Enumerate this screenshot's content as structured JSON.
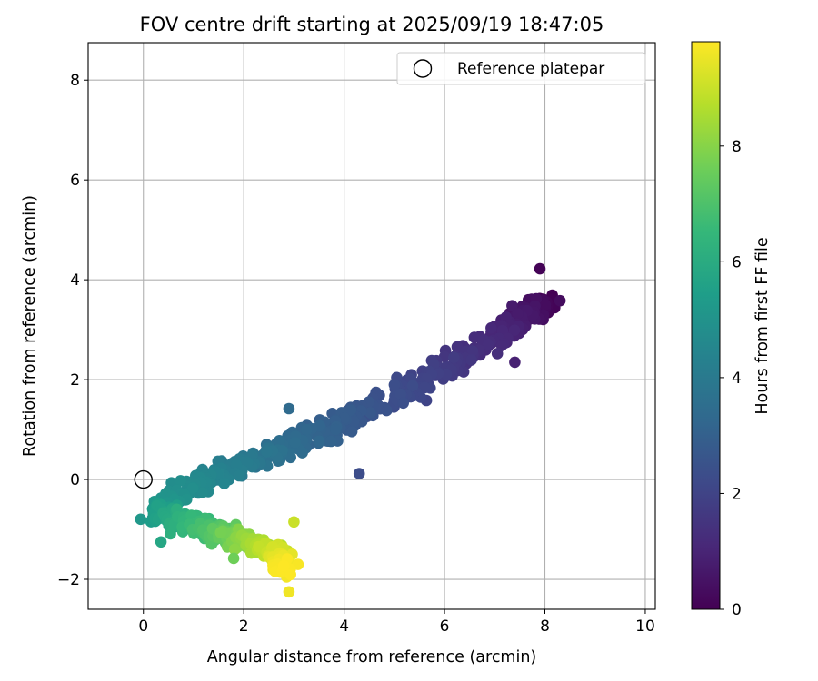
{
  "chart_data": {
    "type": "scatter",
    "title": "FOV centre drift starting at 2025/09/19 18:47:05",
    "xlabel": "Angular distance from reference (arcmin)",
    "ylabel": "Rotation from reference (arcmin)",
    "xlim": [
      -1.1,
      10.2
    ],
    "ylim": [
      -2.6,
      8.75
    ],
    "xticks": [
      0,
      2,
      4,
      6,
      8,
      10
    ],
    "yticks": [
      -2,
      0,
      2,
      4,
      6,
      8
    ],
    "xtick_labels": [
      "0",
      "2",
      "4",
      "6",
      "8",
      "10"
    ],
    "ytick_labels": [
      "−2",
      "0",
      "2",
      "4",
      "6",
      "8"
    ],
    "grid": true,
    "reference_point": {
      "x": 0,
      "y": 0,
      "label": "Reference platepar"
    },
    "legend": {
      "position": "top-right",
      "entries": [
        "Reference platepar"
      ]
    },
    "colorbar": {
      "label": "Hours from first FF file",
      "range": [
        0,
        9.8
      ],
      "ticks": [
        0,
        2,
        4,
        6,
        8
      ],
      "tick_labels": [
        "0",
        "2",
        "4",
        "6",
        "8"
      ],
      "colormap": "viridis"
    },
    "drift_path": [
      {
        "t": 0.0,
        "x": 8.0,
        "y": 3.55,
        "spread": 0.22
      },
      {
        "t": 0.5,
        "x": 7.7,
        "y": 3.35,
        "spread": 0.25
      },
      {
        "t": 1.0,
        "x": 7.1,
        "y": 2.95,
        "spread": 0.28
      },
      {
        "t": 1.5,
        "x": 6.4,
        "y": 2.5,
        "spread": 0.3
      },
      {
        "t": 2.0,
        "x": 5.6,
        "y": 1.95,
        "spread": 0.3
      },
      {
        "t": 2.5,
        "x": 4.6,
        "y": 1.45,
        "spread": 0.3
      },
      {
        "t": 3.0,
        "x": 3.6,
        "y": 1.0,
        "spread": 0.3
      },
      {
        "t": 3.5,
        "x": 2.8,
        "y": 0.65,
        "spread": 0.28
      },
      {
        "t": 4.0,
        "x": 2.0,
        "y": 0.3,
        "spread": 0.28
      },
      {
        "t": 4.5,
        "x": 1.2,
        "y": 0.0,
        "spread": 0.25
      },
      {
        "t": 5.2,
        "x": 0.3,
        "y": -0.6,
        "spread": 0.25
      },
      {
        "t": 6.0,
        "x": 0.7,
        "y": -0.8,
        "spread": 0.28
      },
      {
        "t": 7.0,
        "x": 1.4,
        "y": -1.05,
        "spread": 0.25
      },
      {
        "t": 8.0,
        "x": 2.0,
        "y": -1.2,
        "spread": 0.22
      },
      {
        "t": 9.0,
        "x": 2.6,
        "y": -1.45,
        "spread": 0.2
      },
      {
        "t": 9.8,
        "x": 2.85,
        "y": -1.75,
        "spread": 0.22
      }
    ],
    "n_points": 950,
    "outliers": [
      {
        "t": 0.05,
        "x": 7.9,
        "y": 4.22
      },
      {
        "t": 0.3,
        "x": 8.3,
        "y": 3.58
      },
      {
        "t": 0.9,
        "x": 7.4,
        "y": 2.35
      },
      {
        "t": 2.3,
        "x": 4.3,
        "y": 0.12
      },
      {
        "t": 3.4,
        "x": 2.9,
        "y": 1.42
      },
      {
        "t": 5.8,
        "x": 0.35,
        "y": -1.25
      },
      {
        "t": 7.6,
        "x": 1.8,
        "y": -1.58
      },
      {
        "t": 9.6,
        "x": 2.9,
        "y": -2.25
      },
      {
        "t": 9.0,
        "x": 3.0,
        "y": -0.85
      }
    ]
  }
}
